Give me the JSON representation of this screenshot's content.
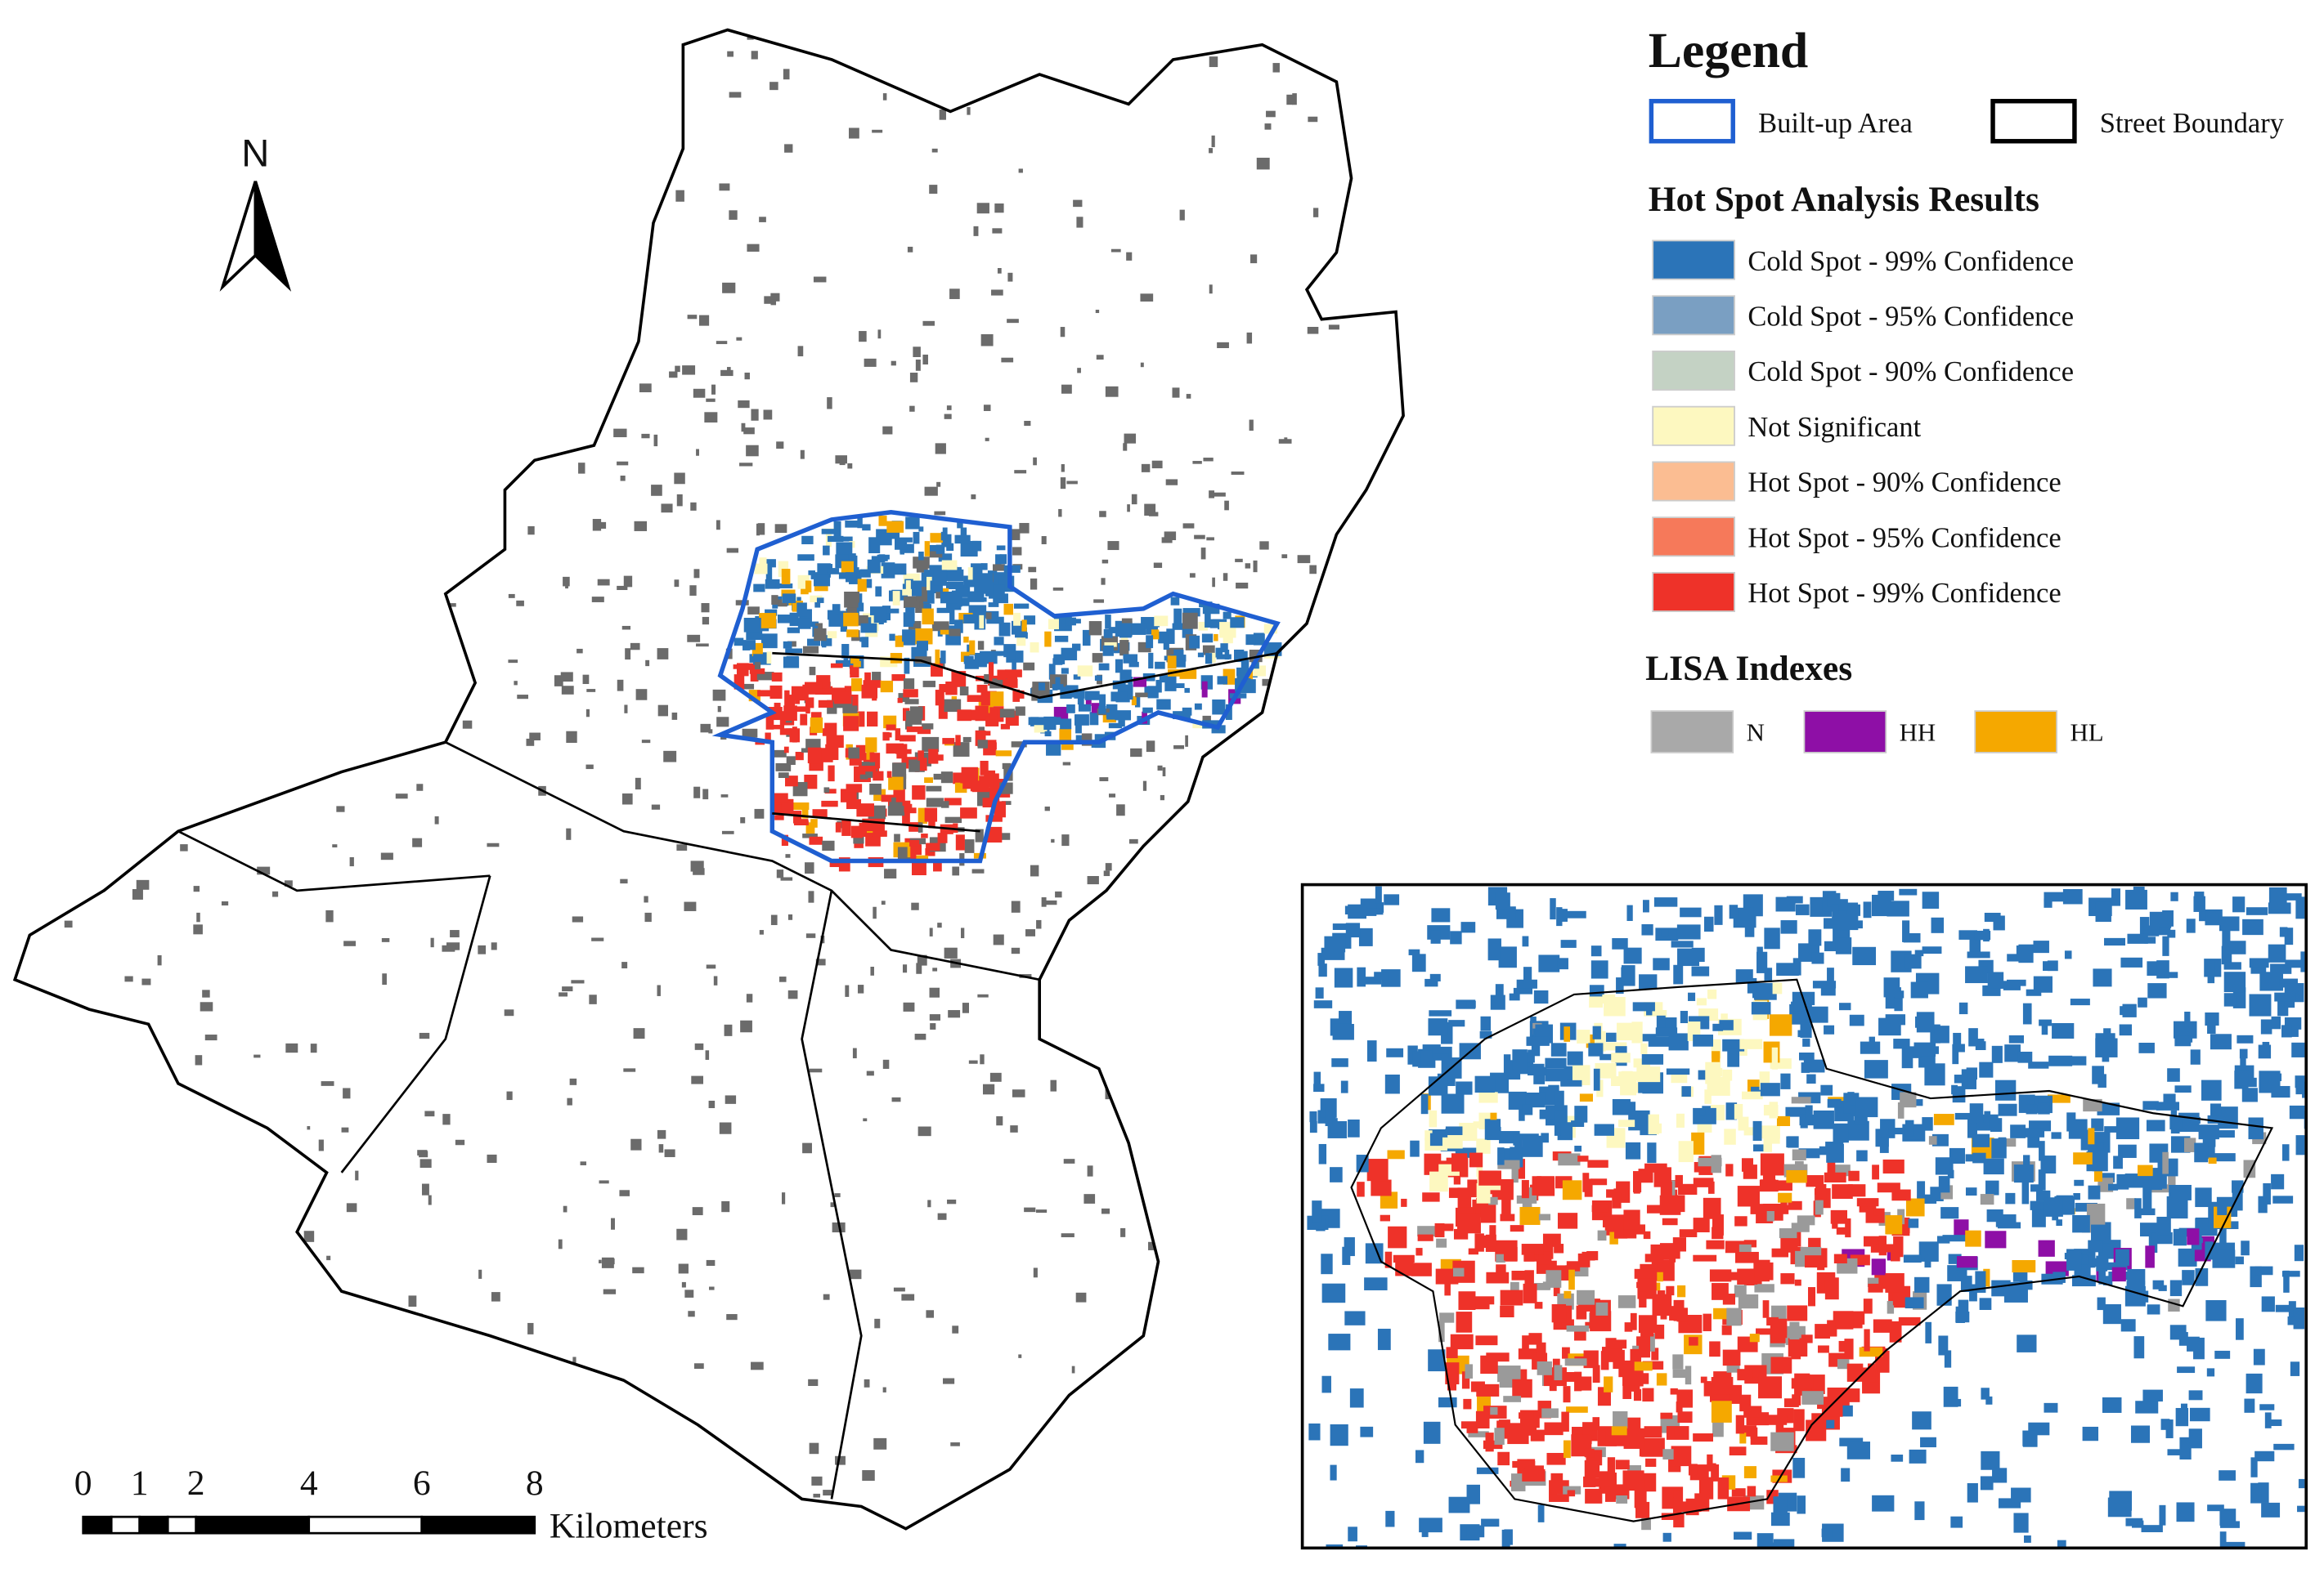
{
  "north_arrow": {
    "label": "N"
  },
  "legend": {
    "title": "Legend",
    "boundaries": [
      {
        "label": "Built-up Area",
        "color": "#1f5fd1"
      },
      {
        "label": "Street Boundary",
        "color": "#000000"
      }
    ],
    "hot_spot": {
      "title": "Hot Spot Analysis Results",
      "items": [
        {
          "label": "Cold Spot - 99% Confidence",
          "color": "#2b74b8"
        },
        {
          "label": "Cold Spot - 95% Confidence",
          "color": "#7a9fc2"
        },
        {
          "label": "Cold Spot - 90% Confidence",
          "color": "#c4d2c4"
        },
        {
          "label": "Not Significant",
          "color": "#fdf8c0"
        },
        {
          "label": "Hot Spot - 90% Confidence",
          "color": "#fbbd92"
        },
        {
          "label": "Hot Spot - 95% Confidence",
          "color": "#f6795a"
        },
        {
          "label": "Hot Spot - 99% Confidence",
          "color": "#ee3229"
        }
      ]
    },
    "lisa": {
      "title": "LISA Indexes",
      "items": [
        {
          "label": "N",
          "color": "#a9a9a9"
        },
        {
          "label": "HH",
          "color": "#8e0fa6"
        },
        {
          "label": "HL",
          "color": "#f5a800"
        }
      ]
    }
  },
  "scale_bar": {
    "ticks": [
      0,
      1,
      2,
      4,
      6,
      8
    ],
    "unit": "Kilometers"
  }
}
